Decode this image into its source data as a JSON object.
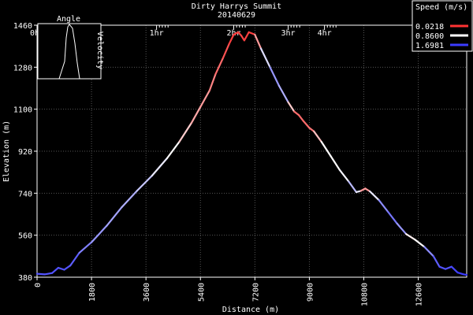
{
  "chart_data": {
    "type": "line",
    "title": "Dirty Harrys Summit",
    "subtitle": "20140629",
    "xlabel": "Distance (m)",
    "ylabel": "Elevation (m)",
    "xlim": [
      0,
      14200
    ],
    "ylim": [
      380,
      1460
    ],
    "x_ticks": [
      0,
      1800,
      3600,
      5400,
      7200,
      9000,
      10800,
      12600
    ],
    "y_ticks": [
      380,
      560,
      740,
      920,
      1100,
      1280,
      1460
    ],
    "grid": true,
    "time_ticks": [
      {
        "label": "0hr",
        "x": 0
      },
      {
        "label": "1hr",
        "x": 3950
      },
      {
        "label": "2hr",
        "x": 6500
      },
      {
        "label": "3hr",
        "x": 8300
      },
      {
        "label": "4hr",
        "x": 9500
      }
    ],
    "speed_legend": {
      "title": "Speed (m/s)",
      "placement": "top-right",
      "entries": [
        {
          "label": "0.0218",
          "color": "#ff3333"
        },
        {
          "label": "0.8600",
          "color": "#ffffff"
        },
        {
          "label": "1.6981",
          "color": "#3b3bff"
        }
      ]
    },
    "inset": {
      "title": "Angle",
      "ylabel": "Velocity",
      "placement": "top-left"
    },
    "series": [
      {
        "x": [
          0,
          250,
          500,
          700,
          900,
          1100,
          1400,
          1800,
          2300,
          2800,
          3300,
          3800,
          4300,
          4700,
          5100,
          5400,
          5700,
          5900,
          6150,
          6350,
          6500,
          6650,
          6750,
          6850,
          7000,
          7200,
          7400,
          7700,
          8000,
          8300,
          8500,
          8650,
          8800,
          9000,
          9150,
          9400,
          9700,
          10000,
          10300,
          10550,
          10700,
          10850,
          11000,
          11300,
          11600,
          11900,
          12200,
          12500,
          12800,
          13100,
          13300,
          13500,
          13700,
          13900,
          14100,
          14200
        ],
        "y": [
          395,
          392,
          398,
          420,
          412,
          430,
          485,
          530,
          600,
          680,
          750,
          815,
          890,
          960,
          1040,
          1110,
          1180,
          1250,
          1320,
          1380,
          1420,
          1430,
          1415,
          1395,
          1430,
          1420,
          1360,
          1280,
          1200,
          1130,
          1090,
          1075,
          1050,
          1020,
          1005,
          960,
          900,
          840,
          790,
          745,
          750,
          760,
          748,
          710,
          660,
          610,
          565,
          540,
          510,
          470,
          425,
          415,
          425,
          400,
          392,
          390
        ],
        "speed": [
          1.6,
          1.6,
          1.6,
          1.6,
          1.6,
          1.6,
          1.5,
          1.3,
          1.3,
          1.2,
          1.2,
          1.0,
          0.9,
          0.8,
          0.5,
          0.5,
          0.4,
          0.3,
          0.2,
          0.1,
          0.05,
          0.05,
          0.1,
          0.1,
          0.05,
          0.1,
          0.8,
          1.2,
          1.4,
          1.0,
          0.3,
          0.2,
          0.3,
          0.2,
          0.4,
          0.8,
          0.9,
          0.8,
          1.0,
          1.3,
          0.6,
          0.3,
          0.6,
          1.3,
          1.4,
          1.5,
          1.1,
          0.5,
          1.2,
          1.5,
          1.6,
          1.6,
          1.6,
          1.7,
          1.7,
          1.7
        ]
      }
    ]
  }
}
